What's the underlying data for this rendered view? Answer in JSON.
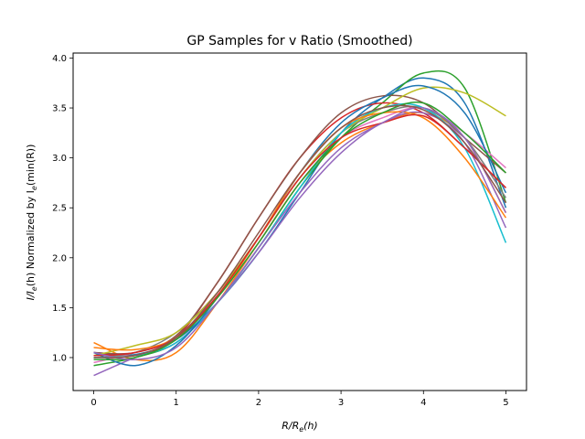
{
  "chart_data": {
    "type": "line",
    "title": "GP Samples for v Ratio (Smoothed)",
    "xlabel_parts": {
      "base": "R/R",
      "sub": "e",
      "tail": "(h)"
    },
    "ylabel_parts": {
      "a": "I/I",
      "sub1": "e",
      "b": "(h) Normalized by I",
      "sub2": "e",
      "c": "(min(R))"
    },
    "xlim": [
      -0.25,
      5.25
    ],
    "ylim": [
      0.67,
      4.05
    ],
    "xticks": [
      0,
      1,
      2,
      3,
      4,
      5
    ],
    "yticks": [
      1.0,
      1.5,
      2.0,
      2.5,
      3.0,
      3.5,
      4.0
    ],
    "xtick_labels": [
      "0",
      "1",
      "2",
      "3",
      "4",
      "5"
    ],
    "ytick_labels": [
      "1.0",
      "1.5",
      "2.0",
      "2.5",
      "3.0",
      "3.5",
      "4.0"
    ],
    "grid": false,
    "x": [
      0,
      0.5,
      1,
      1.5,
      2,
      2.5,
      3,
      3.5,
      4,
      4.5,
      5
    ],
    "series": [
      {
        "color": "#1f77b4",
        "values": [
          1.05,
          1.03,
          1.18,
          1.55,
          2.05,
          2.65,
          3.25,
          3.6,
          3.8,
          3.55,
          2.5
        ]
      },
      {
        "color": "#ff7f0e",
        "values": [
          1.15,
          0.98,
          1.05,
          1.55,
          2.15,
          2.75,
          3.15,
          3.35,
          3.45,
          3.2,
          2.45
        ]
      },
      {
        "color": "#2ca02c",
        "values": [
          0.92,
          1.0,
          1.15,
          1.55,
          2.1,
          2.7,
          3.2,
          3.55,
          3.85,
          3.7,
          2.55
        ]
      },
      {
        "color": "#d62728",
        "values": [
          1.05,
          1.02,
          1.2,
          1.75,
          2.4,
          3.0,
          3.4,
          3.55,
          3.45,
          3.1,
          2.7
        ]
      },
      {
        "color": "#9467bd",
        "values": [
          0.82,
          1.0,
          1.15,
          1.55,
          2.05,
          2.6,
          3.05,
          3.35,
          3.45,
          3.15,
          2.3
        ]
      },
      {
        "color": "#8c564b",
        "values": [
          1.05,
          1.05,
          1.22,
          1.75,
          2.4,
          3.0,
          3.45,
          3.62,
          3.55,
          3.2,
          2.85
        ]
      },
      {
        "color": "#e377c2",
        "values": [
          0.95,
          1.05,
          1.2,
          1.6,
          2.15,
          2.75,
          3.2,
          3.4,
          3.5,
          3.25,
          2.9
        ]
      },
      {
        "color": "#7f7f7f",
        "values": [
          1.0,
          1.05,
          1.25,
          1.65,
          2.2,
          2.8,
          3.25,
          3.45,
          3.5,
          3.2,
          2.6
        ]
      },
      {
        "color": "#bcbd22",
        "values": [
          1.02,
          1.12,
          1.25,
          1.65,
          2.2,
          2.8,
          3.25,
          3.5,
          3.7,
          3.65,
          3.42
        ]
      },
      {
        "color": "#17becf",
        "values": [
          1.0,
          1.02,
          1.15,
          1.55,
          2.1,
          2.7,
          3.25,
          3.5,
          3.5,
          3.1,
          2.15
        ]
      },
      {
        "color": "#1f77b4",
        "values": [
          1.05,
          0.92,
          1.12,
          1.6,
          2.2,
          2.85,
          3.35,
          3.6,
          3.72,
          3.45,
          2.65
        ]
      },
      {
        "color": "#ff7f0e",
        "values": [
          1.1,
          1.08,
          1.2,
          1.6,
          2.2,
          2.85,
          3.3,
          3.45,
          3.4,
          3.0,
          2.4
        ]
      },
      {
        "color": "#2ca02c",
        "values": [
          0.98,
          1.0,
          1.18,
          1.6,
          2.15,
          2.75,
          3.2,
          3.45,
          3.55,
          3.25,
          2.85
        ]
      },
      {
        "color": "#d62728",
        "values": [
          1.02,
          1.05,
          1.2,
          1.62,
          2.2,
          2.8,
          3.2,
          3.35,
          3.42,
          3.1,
          2.7
        ]
      },
      {
        "color": "#9467bd",
        "values": [
          1.05,
          0.98,
          1.1,
          1.55,
          2.1,
          2.65,
          3.1,
          3.35,
          3.5,
          3.2,
          2.45
        ]
      },
      {
        "color": "#8c564b",
        "values": [
          1.0,
          1.02,
          1.2,
          1.65,
          2.25,
          2.85,
          3.3,
          3.5,
          3.48,
          3.15,
          2.55
        ]
      }
    ]
  }
}
